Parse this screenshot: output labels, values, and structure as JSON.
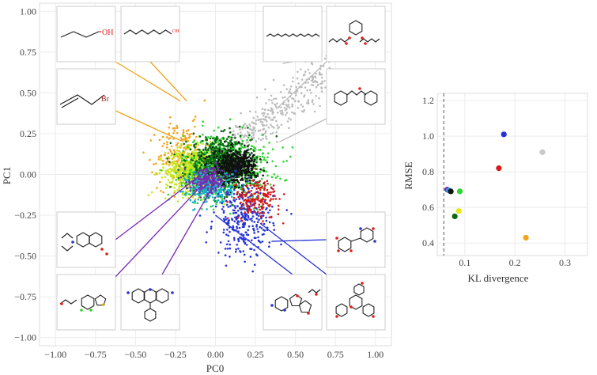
{
  "chart_data": [
    {
      "type": "scatter",
      "title": "",
      "xlabel": "PC0",
      "ylabel": "PC1",
      "xlim": [
        -1.1,
        1.1
      ],
      "ylim": [
        -1.05,
        1.05
      ],
      "xticks": [
        -1.0,
        -0.75,
        -0.5,
        -0.25,
        0.0,
        0.25,
        0.5,
        0.75,
        1.0
      ],
      "xtick_labels": [
        "−1.00",
        "−0.75",
        "−0.50",
        "−0.25",
        "0.00",
        "0.25",
        "0.50",
        "0.75",
        "1.00"
      ],
      "yticks": [
        -1.0,
        -0.75,
        -0.5,
        -0.25,
        0.0,
        0.25,
        0.5,
        0.75,
        1.0
      ],
      "ytick_labels": [
        "−1.00",
        "−0.75",
        "−0.50",
        "−0.25",
        "0.00",
        "0.25",
        "0.50",
        "0.75",
        "1.00"
      ],
      "grid": true,
      "series": [
        {
          "name": "gray",
          "color": "#bdbdbd",
          "center": [
            0.28,
            0.33
          ],
          "spread": [
            0.15,
            0.12
          ],
          "count": 320
        },
        {
          "name": "orange",
          "color": "#f2a31b",
          "center": [
            -0.2,
            0.11
          ],
          "spread": [
            0.08,
            0.1
          ],
          "count": 260
        },
        {
          "name": "yellow-green",
          "color": "#c6e81e",
          "center": [
            -0.13,
            0.02
          ],
          "spread": [
            0.09,
            0.07
          ],
          "count": 700
        },
        {
          "name": "green",
          "color": "#2ed52e",
          "center": [
            0.08,
            0.05
          ],
          "spread": [
            0.14,
            0.1
          ],
          "count": 600
        },
        {
          "name": "dark-green",
          "color": "#0b6b12",
          "center": [
            0.02,
            0.06
          ],
          "spread": [
            0.1,
            0.08
          ],
          "count": 700
        },
        {
          "name": "black",
          "color": "#111111",
          "center": [
            0.12,
            0.05
          ],
          "spread": [
            0.07,
            0.05
          ],
          "count": 500
        },
        {
          "name": "cyan",
          "color": "#15b3c9",
          "center": [
            -0.04,
            -0.08
          ],
          "spread": [
            0.07,
            0.05
          ],
          "count": 300
        },
        {
          "name": "blue",
          "color": "#2533d6",
          "center": [
            0.18,
            -0.28
          ],
          "spread": [
            0.09,
            0.11
          ],
          "count": 300
        },
        {
          "name": "red",
          "color": "#d81b1b",
          "center": [
            0.26,
            -0.15
          ],
          "spread": [
            0.07,
            0.06
          ],
          "count": 170
        },
        {
          "name": "purple",
          "color": "#7b2ab5",
          "center": [
            -0.04,
            -0.03
          ],
          "spread": [
            0.06,
            0.04
          ],
          "count": 160
        }
      ],
      "annotations": [
        {
          "name": "structure-propanol",
          "label": "OH",
          "label_color": "#e0201b",
          "leader_color": "#f2a31b",
          "points_to": [
            -0.22,
            0.45
          ]
        },
        {
          "name": "structure-octanol",
          "label": "OH",
          "label_color": "#e0201b",
          "leader_color": "#f2a31b",
          "points_to": [
            -0.18,
            0.45
          ]
        },
        {
          "name": "structure-allyl-bromide",
          "label": "Br",
          "label_color": "#a52a2a",
          "leader_color": "#f2a31b",
          "points_to": [
            -0.2,
            0.2
          ]
        },
        {
          "name": "structure-alkane",
          "label": "",
          "label_color": "",
          "leader_color": "#bdbdbd",
          "points_to": [
            0.42,
            0.68
          ]
        },
        {
          "name": "structure-phthalate",
          "label": "",
          "label_color": "",
          "leader_color": "#bdbdbd",
          "points_to": [
            0.38,
            0.4
          ]
        },
        {
          "name": "structure-terpene",
          "label": "",
          "label_color": "",
          "leader_color": "#bdbdbd",
          "points_to": [
            0.4,
            0.2
          ]
        },
        {
          "name": "structure-coumarin",
          "label": "",
          "label_color": "",
          "leader_color": "#7b2ab5",
          "points_to": [
            -0.06,
            0.02
          ]
        },
        {
          "name": "structure-thiophene",
          "label": "",
          "label_color": "",
          "leader_color": "#7b2ab5",
          "points_to": [
            -0.04,
            -0.02
          ]
        },
        {
          "name": "structure-acridine",
          "label": "",
          "label_color": "",
          "leader_color": "#7b2ab5",
          "points_to": [
            -0.02,
            -0.08
          ]
        },
        {
          "name": "structure-nucleoside",
          "label": "",
          "label_color": "",
          "leader_color": "#2533d6",
          "points_to": [
            0.0,
            -0.25
          ]
        },
        {
          "name": "structure-glycoside-a",
          "label": "",
          "label_color": "",
          "leader_color": "#2533d6",
          "points_to": [
            0.35,
            -0.41
          ]
        },
        {
          "name": "structure-glycoside-b",
          "label": "",
          "label_color": "",
          "leader_color": "#2533d6",
          "points_to": [
            0.28,
            -0.3
          ]
        }
      ]
    },
    {
      "type": "scatter",
      "title": "",
      "xlabel": "KL divergence",
      "ylabel": "RMSE",
      "xlim": [
        0.045,
        0.345
      ],
      "ylim": [
        0.33,
        1.24
      ],
      "xticks": [
        0.1,
        0.2,
        0.3
      ],
      "xtick_labels": [
        "0.1",
        "0.2",
        "0.3"
      ],
      "yticks": [
        0.4,
        0.6,
        0.8,
        1.0,
        1.2
      ],
      "ytick_labels": [
        "0.4",
        "0.6",
        "0.8",
        "1.0",
        "1.2"
      ],
      "grid": true,
      "reference_line_x": 0.058,
      "points": [
        {
          "x": 0.178,
          "y": 1.01,
          "color": "#2533d6"
        },
        {
          "x": 0.255,
          "y": 0.91,
          "color": "#c8c8c8"
        },
        {
          "x": 0.168,
          "y": 0.82,
          "color": "#d81b1b"
        },
        {
          "x": 0.065,
          "y": 0.7,
          "color": "#7b2ab5"
        },
        {
          "x": 0.068,
          "y": 0.695,
          "color": "#2a9fd6"
        },
        {
          "x": 0.072,
          "y": 0.69,
          "color": "#111111"
        },
        {
          "x": 0.09,
          "y": 0.69,
          "color": "#2ed52e"
        },
        {
          "x": 0.088,
          "y": 0.58,
          "color": "#e6e619"
        },
        {
          "x": 0.08,
          "y": 0.55,
          "color": "#0b6b12"
        },
        {
          "x": 0.222,
          "y": 0.43,
          "color": "#f2a31b"
        }
      ]
    }
  ]
}
